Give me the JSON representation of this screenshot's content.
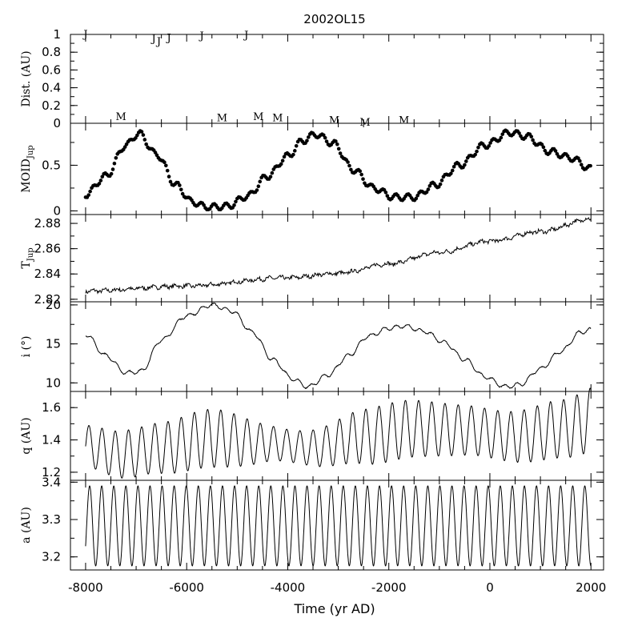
{
  "chart_data": {
    "title": "2002OL15",
    "type": "line",
    "shared_x": {
      "label": "Time (yr AD)",
      "lim": [
        -8300,
        2250
      ],
      "ticks": [
        -8000,
        -6000,
        -4000,
        -2000,
        0,
        2000
      ],
      "tick_labels": [
        "-8000",
        "-6000",
        "-4000",
        "-2000",
        "0",
        "2000"
      ],
      "data_range": [
        -8000,
        2000
      ]
    },
    "panels": [
      {
        "id": "dist",
        "type": "scatter",
        "ylabel": "Dist. (AU)",
        "ylim": [
          0,
          1
        ],
        "yticks": [
          0,
          0.2,
          0.4,
          0.6,
          0.8,
          1
        ],
        "ytick_labels": [
          "0",
          "0.2",
          "0.4",
          "0.6",
          "0.8",
          "1"
        ],
        "series": [
          {
            "name": "J",
            "points": [
              [
                -8000,
                1.0
              ],
              [
                -6650,
                0.95
              ],
              [
                -6550,
                0.92
              ],
              [
                -6350,
                0.96
              ],
              [
                -5700,
                0.98
              ],
              [
                -4820,
                0.99
              ]
            ]
          },
          {
            "name": "M",
            "points": [
              [
                -7300,
                0.07
              ],
              [
                -5300,
                0.06
              ],
              [
                -4580,
                0.07
              ],
              [
                -4200,
                0.06
              ],
              [
                -3080,
                0.03
              ],
              [
                -2470,
                0.01
              ],
              [
                -1700,
                0.03
              ]
            ]
          }
        ]
      },
      {
        "id": "moid",
        "type": "scatter",
        "ylabel": "MOID",
        "ylabel_sub": "Jup",
        "ylim": [
          -0.04,
          0.96
        ],
        "yticks": [
          0,
          0.5
        ],
        "ytick_labels": [
          "0",
          "0.5"
        ],
        "trend_points": [
          [
            -8000,
            0.18
          ],
          [
            -7600,
            0.38
          ],
          [
            -7200,
            0.72
          ],
          [
            -6950,
            0.85
          ],
          [
            -6600,
            0.62
          ],
          [
            -6200,
            0.28
          ],
          [
            -5900,
            0.1
          ],
          [
            -5600,
            0.04
          ],
          [
            -5200,
            0.05
          ],
          [
            -4800,
            0.16
          ],
          [
            -4400,
            0.38
          ],
          [
            -4000,
            0.6
          ],
          [
            -3700,
            0.77
          ],
          [
            -3450,
            0.84
          ],
          [
            -3100,
            0.74
          ],
          [
            -2700,
            0.45
          ],
          [
            -2300,
            0.25
          ],
          [
            -1900,
            0.15
          ],
          [
            -1500,
            0.15
          ],
          [
            -1100,
            0.28
          ],
          [
            -600,
            0.5
          ],
          [
            -100,
            0.72
          ],
          [
            400,
            0.86
          ],
          [
            700,
            0.82
          ],
          [
            1200,
            0.65
          ],
          [
            1600,
            0.58
          ],
          [
            2000,
            0.46
          ]
        ]
      },
      {
        "id": "tjup",
        "type": "line",
        "ylabel": "T",
        "ylabel_sub": "Jup",
        "ylim": [
          2.818,
          2.887
        ],
        "yticks": [
          2.82,
          2.84,
          2.86,
          2.88
        ],
        "ytick_labels": [
          "2.82",
          "2.84",
          "2.86",
          "2.88"
        ],
        "trend_points": [
          [
            -8000,
            2.8265
          ],
          [
            -6000,
            2.8305
          ],
          [
            -4000,
            2.837
          ],
          [
            -3000,
            2.8405
          ],
          [
            -2000,
            2.848
          ],
          [
            -1000,
            2.857
          ],
          [
            0,
            2.866
          ],
          [
            1000,
            2.8735
          ],
          [
            2000,
            2.8835
          ]
        ]
      },
      {
        "id": "incl",
        "type": "line",
        "ylabel": "i (°)",
        "ylim": [
          8.9,
          20.4
        ],
        "yticks": [
          10,
          15,
          20
        ],
        "ytick_labels": [
          "10",
          "15",
          "20"
        ],
        "trend_points": [
          [
            -8000,
            16.2
          ],
          [
            -7600,
            13.5
          ],
          [
            -7200,
            11.3
          ],
          [
            -6900,
            11.5
          ],
          [
            -6500,
            15.5
          ],
          [
            -6000,
            18.6
          ],
          [
            -5500,
            20.0
          ],
          [
            -5100,
            19.2
          ],
          [
            -4700,
            16.5
          ],
          [
            -4300,
            13.0
          ],
          [
            -3900,
            10.5
          ],
          [
            -3600,
            9.5
          ],
          [
            -3200,
            11.0
          ],
          [
            -2800,
            13.5
          ],
          [
            -2400,
            16.0
          ],
          [
            -2000,
            17.0
          ],
          [
            -1700,
            17.3
          ],
          [
            -1300,
            16.6
          ],
          [
            -900,
            15.2
          ],
          [
            -500,
            13.0
          ],
          [
            -100,
            10.8
          ],
          [
            300,
            9.5
          ],
          [
            600,
            9.8
          ],
          [
            1000,
            11.8
          ],
          [
            1400,
            14.0
          ],
          [
            1800,
            16.5
          ],
          [
            2000,
            16.8
          ]
        ]
      },
      {
        "id": "q",
        "type": "line",
        "ylabel": "q (AU)",
        "ylim": [
          1.15,
          1.7
        ],
        "yticks": [
          1.2,
          1.4,
          1.6
        ],
        "ytick_labels": [
          "1.2",
          "1.4",
          "1.6"
        ],
        "oscillation_period_yr": 261,
        "mean_points": [
          [
            -8000,
            1.36
          ],
          [
            -7300,
            1.31
          ],
          [
            -6500,
            1.35
          ],
          [
            -5500,
            1.41
          ],
          [
            -4500,
            1.38
          ],
          [
            -3500,
            1.35
          ],
          [
            -2500,
            1.42
          ],
          [
            -1500,
            1.47
          ],
          [
            -500,
            1.46
          ],
          [
            500,
            1.42
          ],
          [
            1500,
            1.47
          ],
          [
            2000,
            1.52
          ]
        ],
        "amplitude_points": [
          [
            -8000,
            0.13
          ],
          [
            -7000,
            0.15
          ],
          [
            -5500,
            0.18
          ],
          [
            -4000,
            0.1
          ],
          [
            -2000,
            0.18
          ],
          [
            0,
            0.15
          ],
          [
            1500,
            0.18
          ],
          [
            2000,
            0.2
          ]
        ]
      },
      {
        "id": "a",
        "type": "line",
        "ylabel": "a (AU)",
        "ylim": [
          3.165,
          3.405
        ],
        "yticks": [
          3.2,
          3.3,
          3.4
        ],
        "ytick_labels": [
          "3.2",
          "3.3",
          "3.4"
        ],
        "oscillation_period_yr": 239,
        "mean_value": 3.283,
        "amplitude": 0.107
      }
    ]
  }
}
